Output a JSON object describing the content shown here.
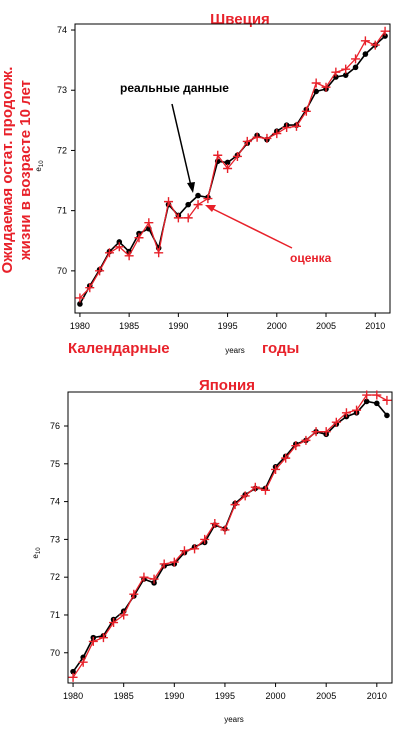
{
  "charts_text": {
    "sweden_title": "Швеция",
    "japan_title": "Япония",
    "ylabel_line1": "Ожидаемая остат. продолж.",
    "ylabel_line2": "жизни в возрасте 10 лет",
    "ylab_e": "e",
    "ylab_sub": "10",
    "xlabel": "years",
    "calendar": "Календарные",
    "years_ru": "годы",
    "real_data": "реальные данные",
    "estimate": "оценка"
  },
  "colors": {
    "observed": "#000000",
    "fitted": "#e8212a",
    "title": "#e8212a"
  },
  "chart_data": [
    {
      "type": "line",
      "title": "Швеция",
      "xlabel": "years",
      "ylabel": "e10",
      "xlim": [
        1979.5,
        2011.5
      ],
      "ylim": [
        69.3,
        74.1
      ],
      "xticks": [
        1980,
        1985,
        1990,
        1995,
        2000,
        2005,
        2010
      ],
      "yticks": [
        70,
        71,
        72,
        73,
        74
      ],
      "x": [
        1980,
        1981,
        1982,
        1983,
        1984,
        1985,
        1986,
        1987,
        1988,
        1989,
        1990,
        1991,
        1992,
        1993,
        1994,
        1995,
        1996,
        1997,
        1998,
        1999,
        2000,
        2001,
        2002,
        2003,
        2004,
        2005,
        2006,
        2007,
        2008,
        2009,
        2010,
        2011
      ],
      "series": [
        {
          "name": "реальные данные",
          "marker": "dot",
          "values": [
            69.45,
            69.75,
            70.02,
            70.32,
            70.48,
            70.32,
            70.62,
            70.7,
            70.38,
            71.1,
            70.92,
            71.1,
            71.25,
            71.22,
            71.82,
            71.8,
            71.92,
            72.12,
            72.25,
            72.18,
            72.32,
            72.42,
            72.42,
            72.68,
            72.98,
            73.02,
            73.22,
            73.25,
            73.38,
            73.6,
            73.75,
            73.9
          ]
        },
        {
          "name": "оценка",
          "marker": "plus",
          "values": [
            69.55,
            69.72,
            70.0,
            70.3,
            70.4,
            70.25,
            70.55,
            70.8,
            70.3,
            71.15,
            70.88,
            70.88,
            71.1,
            71.2,
            71.92,
            71.7,
            71.9,
            72.15,
            72.22,
            72.2,
            72.28,
            72.38,
            72.4,
            72.65,
            73.12,
            73.05,
            73.3,
            73.35,
            73.52,
            73.82,
            73.75,
            73.98
          ]
        }
      ]
    },
    {
      "type": "line",
      "title": "Япония",
      "xlabel": "years",
      "ylabel": "e10",
      "xlim": [
        1979.5,
        2011.5
      ],
      "ylim": [
        69.2,
        76.9
      ],
      "xticks": [
        1980,
        1985,
        1990,
        1995,
        2000,
        2005,
        2010
      ],
      "yticks": [
        70,
        71,
        72,
        73,
        74,
        75,
        76
      ],
      "x": [
        1980,
        1981,
        1982,
        1983,
        1984,
        1985,
        1986,
        1987,
        1988,
        1989,
        1990,
        1991,
        1992,
        1993,
        1994,
        1995,
        1996,
        1997,
        1998,
        1999,
        2000,
        2001,
        2002,
        2003,
        2004,
        2005,
        2006,
        2007,
        2008,
        2009,
        2010,
        2011
      ],
      "series": [
        {
          "name": "реальные данные",
          "marker": "dot",
          "values": [
            69.5,
            69.88,
            70.4,
            70.45,
            70.88,
            71.1,
            71.5,
            71.95,
            71.85,
            72.3,
            72.35,
            72.65,
            72.8,
            72.92,
            73.38,
            73.28,
            73.95,
            74.18,
            74.35,
            74.35,
            74.92,
            75.2,
            75.52,
            75.62,
            75.85,
            75.78,
            76.05,
            76.25,
            76.35,
            76.65,
            76.6,
            76.28
          ]
        },
        {
          "name": "оценка",
          "marker": "plus",
          "values": [
            69.35,
            69.75,
            70.3,
            70.4,
            70.8,
            71.0,
            71.55,
            72.0,
            71.95,
            72.35,
            72.4,
            72.7,
            72.75,
            73.0,
            73.42,
            73.25,
            73.92,
            74.15,
            74.38,
            74.3,
            74.85,
            75.15,
            75.48,
            75.62,
            75.85,
            75.85,
            76.1,
            76.35,
            76.42,
            76.82,
            76.82,
            76.68
          ]
        }
      ]
    }
  ]
}
